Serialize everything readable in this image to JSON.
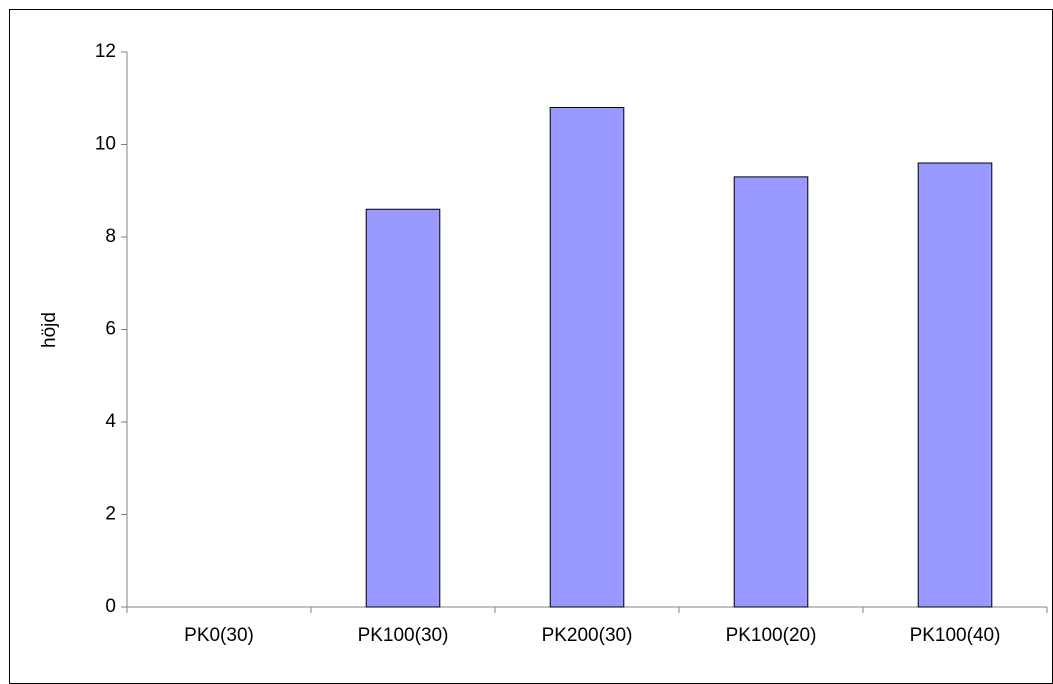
{
  "chart_data": {
    "type": "bar",
    "title": "",
    "xlabel": "",
    "ylabel": "höjd",
    "categories": [
      "PK0(30)",
      "PK100(30)",
      "PK200(30)",
      "PK100(20)",
      "PK100(40)"
    ],
    "series": [
      {
        "values": [
          0,
          8.6,
          10.8,
          9.3,
          9.6
        ]
      }
    ],
    "ylim": [
      0,
      12
    ],
    "yticks": [
      "0",
      "2",
      "4",
      "6",
      "8",
      "10",
      "12"
    ],
    "grid": false,
    "legend": "none",
    "colors": {
      "bar_fill": "#9999ff",
      "bar_stroke": "#000000",
      "axis": "#808080",
      "frame": "#000000"
    }
  }
}
